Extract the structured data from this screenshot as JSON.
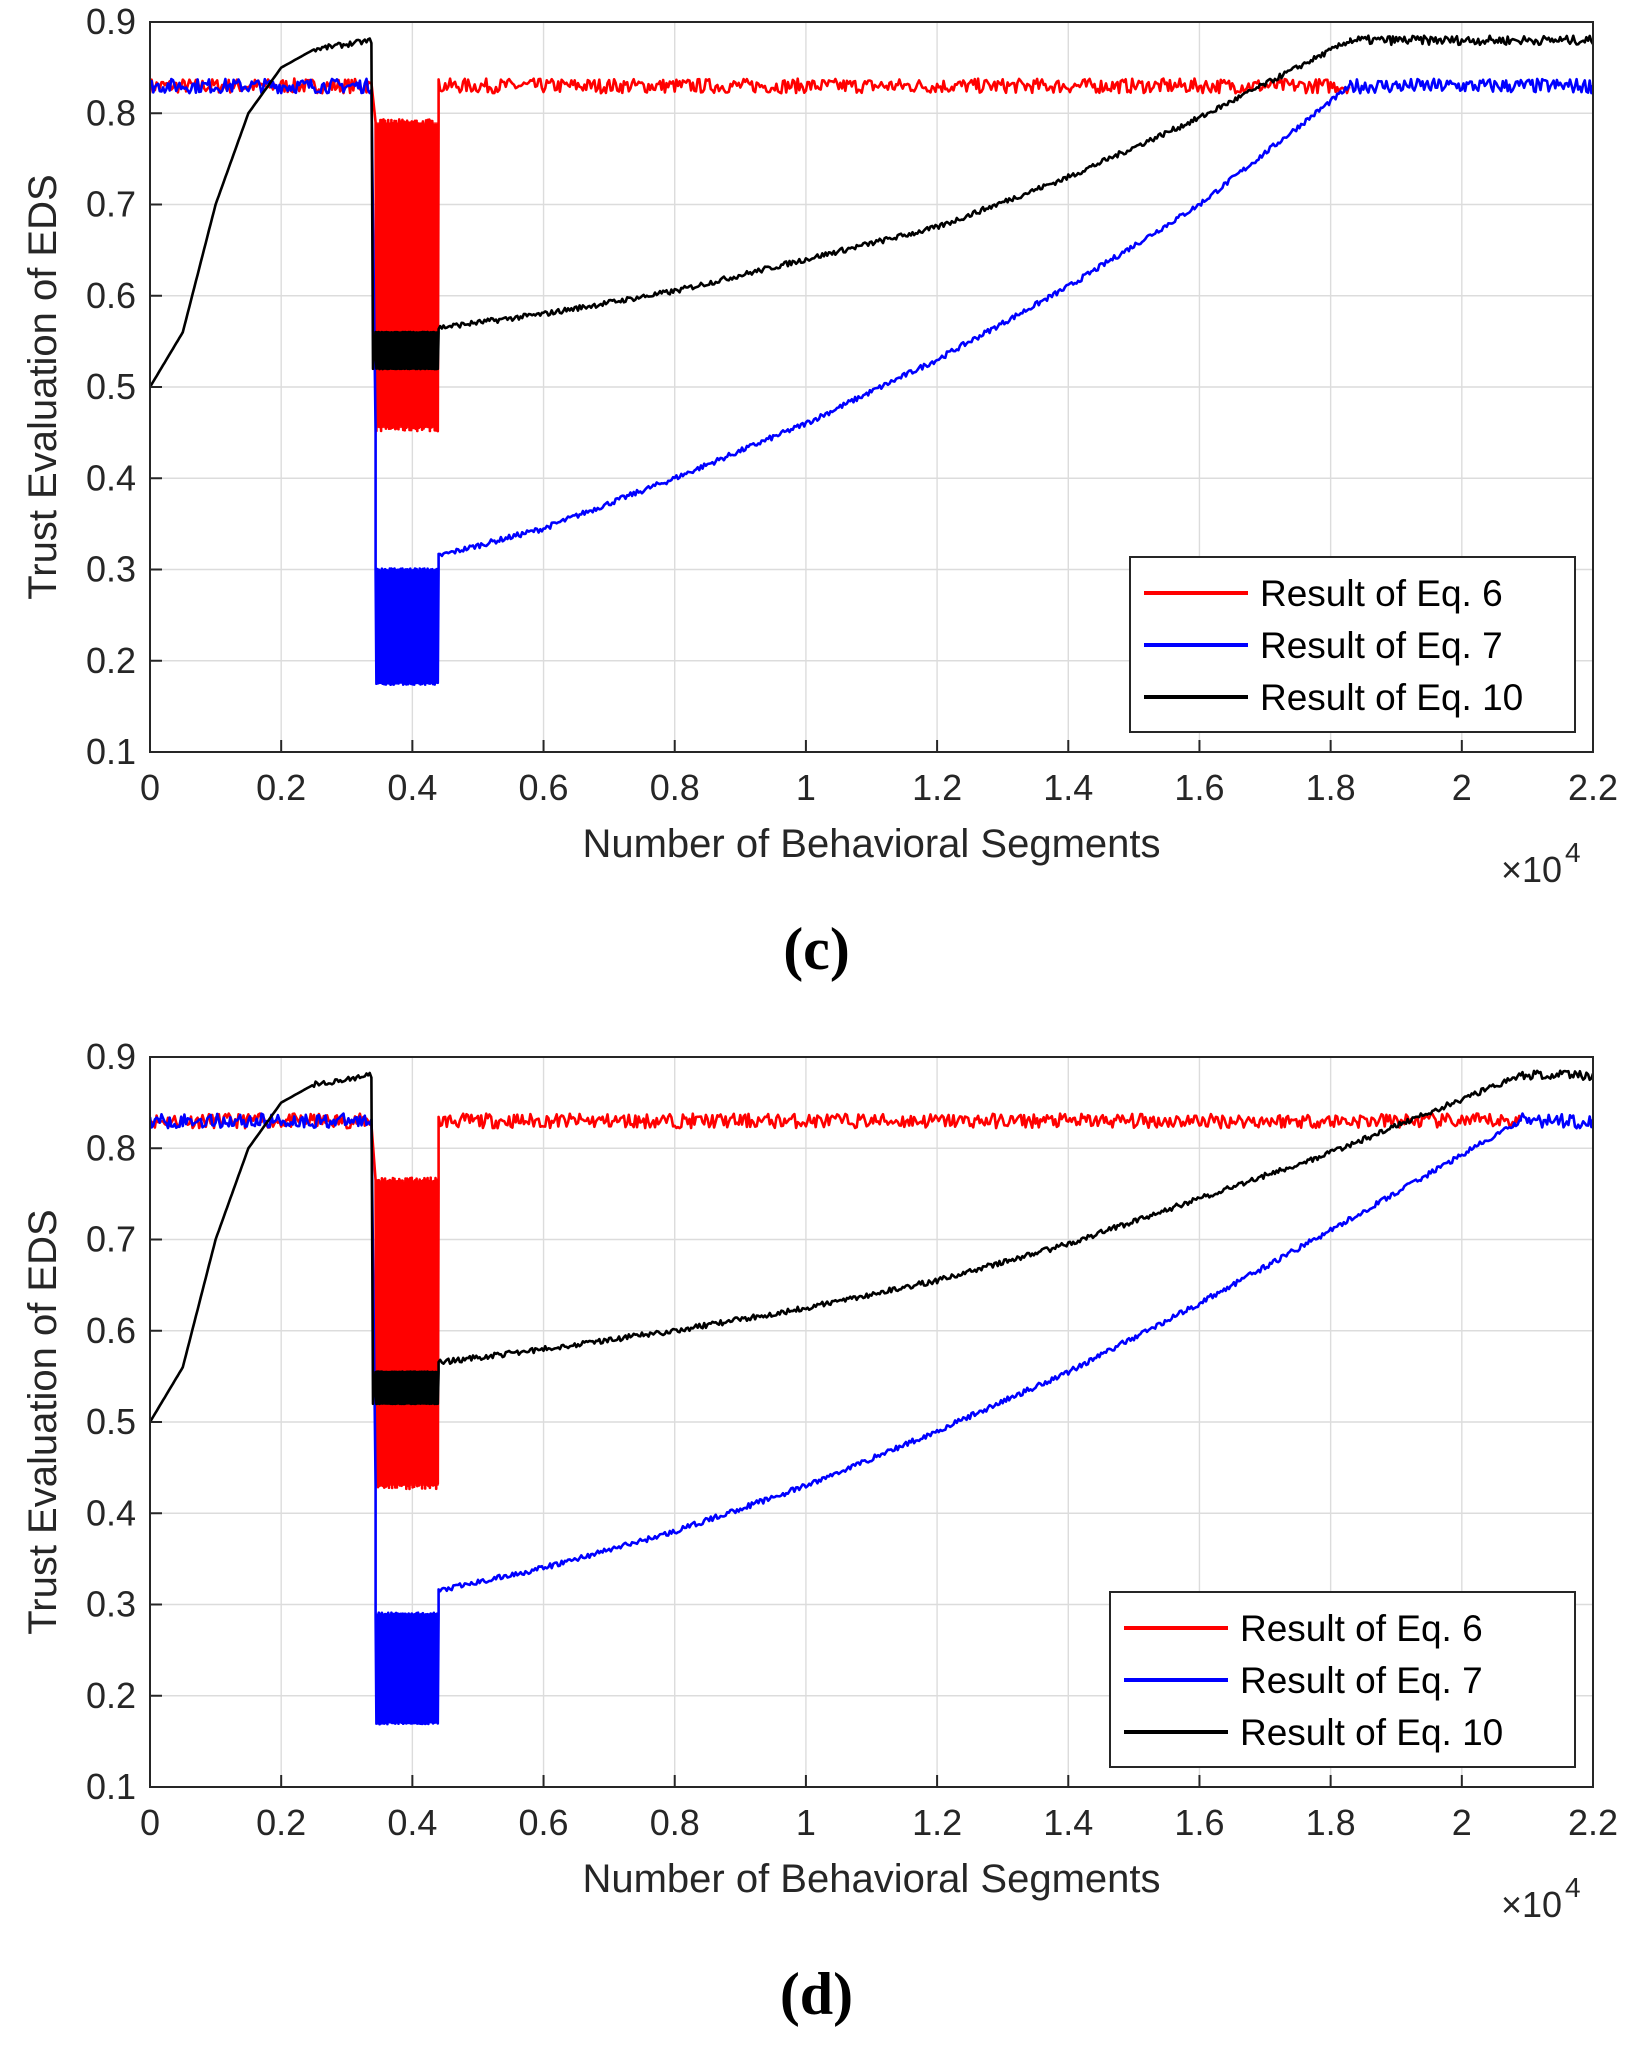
{
  "chart_data": [
    {
      "type": "line",
      "panel_label": "(c)",
      "xlabel": "Number of Behavioral Segments",
      "ylabel": "Trust Evaluation of EDS",
      "x_exponent_label": "×10",
      "x_exponent_power": "4",
      "xlim": [
        0,
        2.2
      ],
      "ylim": [
        0.1,
        0.9
      ],
      "x_ticks": [
        "0",
        "0.2",
        "0.4",
        "0.6",
        "0.8",
        "1",
        "1.2",
        "1.4",
        "1.6",
        "1.8",
        "2",
        "2.2"
      ],
      "y_ticks": [
        "0.1",
        "0.2",
        "0.3",
        "0.4",
        "0.5",
        "0.6",
        "0.7",
        "0.8",
        "0.9"
      ],
      "grid": true,
      "legend_position": "bottom-right",
      "attack_start": 0.34,
      "attack_end": 0.44,
      "recovery_end": 1.83,
      "series": [
        {
          "name": "Result of Eq. 6",
          "color": "#ff0000",
          "steady": 0.83,
          "attack_band": [
            0.455,
            0.79
          ],
          "recovery": [
            [
              0.44,
              0.83
            ],
            [
              1.83,
              0.83
            ]
          ]
        },
        {
          "name": "Result of Eq. 7",
          "color": "#0000ff",
          "steady": 0.83,
          "attack_band": [
            0.175,
            0.3
          ],
          "attack_initial": 0.45,
          "recovery": [
            [
              0.44,
              0.315
            ],
            [
              0.6,
              0.345
            ],
            [
              0.8,
              0.4
            ],
            [
              1.0,
              0.46
            ],
            [
              1.2,
              0.53
            ],
            [
              1.4,
              0.61
            ],
            [
              1.6,
              0.7
            ],
            [
              1.83,
              0.83
            ]
          ]
        },
        {
          "name": "Result of Eq. 10",
          "color": "#000000",
          "start": 0.5,
          "steady": 0.88,
          "rise": [
            [
              0,
              0.5
            ],
            [
              0.05,
              0.56
            ],
            [
              0.1,
              0.7
            ],
            [
              0.15,
              0.8
            ],
            [
              0.2,
              0.85
            ],
            [
              0.25,
              0.87
            ],
            [
              0.34,
              0.88
            ]
          ],
          "attack_band": [
            0.52,
            0.56
          ],
          "recovery": [
            [
              0.44,
              0.565
            ],
            [
              0.6,
              0.58
            ],
            [
              0.8,
              0.605
            ],
            [
              1.0,
              0.64
            ],
            [
              1.2,
              0.675
            ],
            [
              1.4,
              0.73
            ],
            [
              1.6,
              0.795
            ],
            [
              1.83,
              0.88
            ]
          ]
        }
      ]
    },
    {
      "type": "line",
      "panel_label": "(d)",
      "xlabel": "Number of Behavioral Segments",
      "ylabel": "Trust Evaluation of EDS",
      "x_exponent_label": "×10",
      "x_exponent_power": "4",
      "xlim": [
        0,
        2.2
      ],
      "ylim": [
        0.1,
        0.9
      ],
      "x_ticks": [
        "0",
        "0.2",
        "0.4",
        "0.6",
        "0.8",
        "1",
        "1.2",
        "1.4",
        "1.6",
        "1.8",
        "2",
        "2.2"
      ],
      "y_ticks": [
        "0.1",
        "0.2",
        "0.3",
        "0.4",
        "0.5",
        "0.6",
        "0.7",
        "0.8",
        "0.9"
      ],
      "grid": true,
      "legend_position": "bottom-right",
      "attack_start": 0.34,
      "attack_end": 0.44,
      "recovery_end": 2.09,
      "series": [
        {
          "name": "Result of Eq. 6",
          "color": "#ff0000",
          "steady": 0.83,
          "attack_band": [
            0.43,
            0.765
          ],
          "recovery": [
            [
              0.44,
              0.83
            ],
            [
              2.09,
              0.83
            ]
          ]
        },
        {
          "name": "Result of Eq. 7",
          "color": "#0000ff",
          "steady": 0.83,
          "attack_band": [
            0.17,
            0.29
          ],
          "attack_initial": 0.43,
          "recovery": [
            [
              0.44,
              0.315
            ],
            [
              0.6,
              0.34
            ],
            [
              0.8,
              0.38
            ],
            [
              1.0,
              0.43
            ],
            [
              1.2,
              0.49
            ],
            [
              1.4,
              0.555
            ],
            [
              1.6,
              0.63
            ],
            [
              1.8,
              0.71
            ],
            [
              2.09,
              0.83
            ]
          ]
        },
        {
          "name": "Result of Eq. 10",
          "color": "#000000",
          "start": 0.5,
          "steady": 0.88,
          "rise": [
            [
              0,
              0.5
            ],
            [
              0.05,
              0.56
            ],
            [
              0.1,
              0.7
            ],
            [
              0.15,
              0.8
            ],
            [
              0.2,
              0.85
            ],
            [
              0.25,
              0.87
            ],
            [
              0.34,
              0.88
            ]
          ],
          "attack_band": [
            0.52,
            0.555
          ],
          "recovery": [
            [
              0.44,
              0.565
            ],
            [
              0.6,
              0.58
            ],
            [
              0.8,
              0.6
            ],
            [
              1.0,
              0.625
            ],
            [
              1.2,
              0.655
            ],
            [
              1.4,
              0.695
            ],
            [
              1.6,
              0.745
            ],
            [
              1.8,
              0.795
            ],
            [
              2.09,
              0.88
            ]
          ]
        }
      ]
    }
  ]
}
